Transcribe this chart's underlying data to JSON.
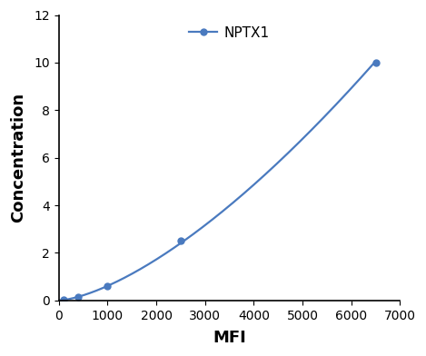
{
  "x": [
    100,
    400,
    1000,
    2500,
    6500
  ],
  "y": [
    0.02,
    0.15,
    0.6,
    2.5,
    10.0
  ],
  "line_color": "#4a7abf",
  "marker_color": "#4a7abf",
  "marker_style": "o",
  "marker_size": 5,
  "line_width": 1.6,
  "xlabel": "MFI",
  "ylabel": "Concentration",
  "xlim": [
    0,
    7000
  ],
  "ylim": [
    0,
    12
  ],
  "xticks": [
    0,
    1000,
    2000,
    3000,
    4000,
    5000,
    6000,
    7000
  ],
  "yticks": [
    0,
    2,
    4,
    6,
    8,
    10,
    12
  ],
  "legend_label": "NPTX1",
  "axis_fontsize": 13,
  "legend_fontsize": 11,
  "tick_fontsize": 10,
  "background_color": "#ffffff"
}
